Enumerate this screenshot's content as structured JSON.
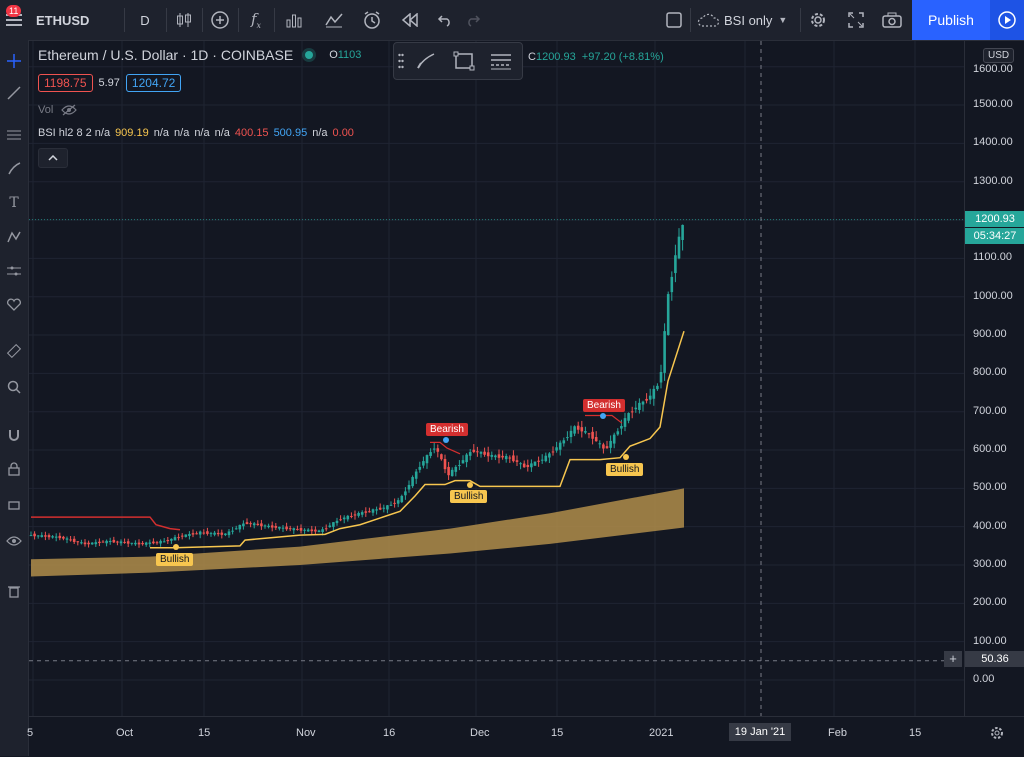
{
  "toolbar": {
    "notifications_badge": "11",
    "symbol": "ETHUSD",
    "interval": "D",
    "cloud_label": "BSI only",
    "publish_label": "Publish"
  },
  "legend": {
    "title": "Ethereum / U.S. Dollar · 1D · COINBASE",
    "open_label": "O",
    "open_value": "1103",
    "close_label": "C",
    "close_value": "1200.93",
    "change": "+97.20 (+8.81%)",
    "bid": "1198.75",
    "spread": "5.97",
    "ask": "1204.72",
    "vol_label": "Vol",
    "indicator_name": "BSI",
    "indicator_params": "hl2 8 2",
    "indicator_values": [
      {
        "text": "n/a",
        "color": "#d1d4dc"
      },
      {
        "text": "909.19",
        "color": "#f7c64f"
      },
      {
        "text": "n/a",
        "color": "#d1d4dc"
      },
      {
        "text": "n/a",
        "color": "#d1d4dc"
      },
      {
        "text": "n/a",
        "color": "#d1d4dc"
      },
      {
        "text": "n/a",
        "color": "#d1d4dc"
      },
      {
        "text": "400.15",
        "color": "#ef5350"
      },
      {
        "text": "500.95",
        "color": "#42a5f5"
      },
      {
        "text": "n/a",
        "color": "#d1d4dc"
      },
      {
        "text": "0.00",
        "color": "#ef5350"
      }
    ]
  },
  "price_axis": {
    "currency": "USD",
    "ticks": [
      1600,
      1500,
      1400,
      1300,
      1200,
      1100,
      1000,
      900,
      800,
      700,
      600,
      500,
      400,
      300,
      200,
      100,
      0
    ],
    "tick_labels": [
      "1600.00",
      "1500.00",
      "1400.00",
      "1300.00",
      "1200.00",
      "1100.00",
      "1000.00",
      "900.00",
      "800.00",
      "700.00",
      "600.00",
      "500.00",
      "400.00",
      "300.00",
      "200.00",
      "100.00",
      "0.00"
    ],
    "last_price": "1200.93",
    "countdown": "05:34:27",
    "crosshair_price": "50.36"
  },
  "time_axis": {
    "labels": [
      "5",
      "Oct",
      "15",
      "Nov",
      "16",
      "Dec",
      "15",
      "2021",
      "15",
      "Feb",
      "15"
    ],
    "crosshair_date": "19 Jan '21"
  },
  "colors": {
    "background": "#131722",
    "up": "#26a69a",
    "down": "#ef5350",
    "bsi_line": "#f7c64f",
    "resistance": "#d32f2f",
    "band": "#b08d4a",
    "publish": "#2962ff"
  },
  "chart_data": {
    "type": "candlestick",
    "title": "Ethereum / U.S. Dollar · 1D · COINBASE",
    "y_range": [
      0,
      1600
    ],
    "x_categories": [
      "5",
      "Oct",
      "15",
      "Nov",
      "16",
      "Dec",
      "15",
      "2021",
      "15",
      "Feb",
      "15"
    ],
    "last_close": 1200.93,
    "last_open": 1103,
    "signals": [
      {
        "label": "Bullish",
        "date": "Oct 6",
        "price": 345,
        "kind": "bullish"
      },
      {
        "label": "Bearish",
        "date": "Nov 24",
        "price": 615,
        "kind": "bearish"
      },
      {
        "label": "Bullish",
        "date": "Nov 28",
        "price": 510,
        "kind": "bullish"
      },
      {
        "label": "Bearish",
        "date": "Dec 26",
        "price": 690,
        "kind": "bearish"
      },
      {
        "label": "Bullish",
        "date": "Dec 29",
        "price": 575,
        "kind": "bullish"
      }
    ]
  }
}
